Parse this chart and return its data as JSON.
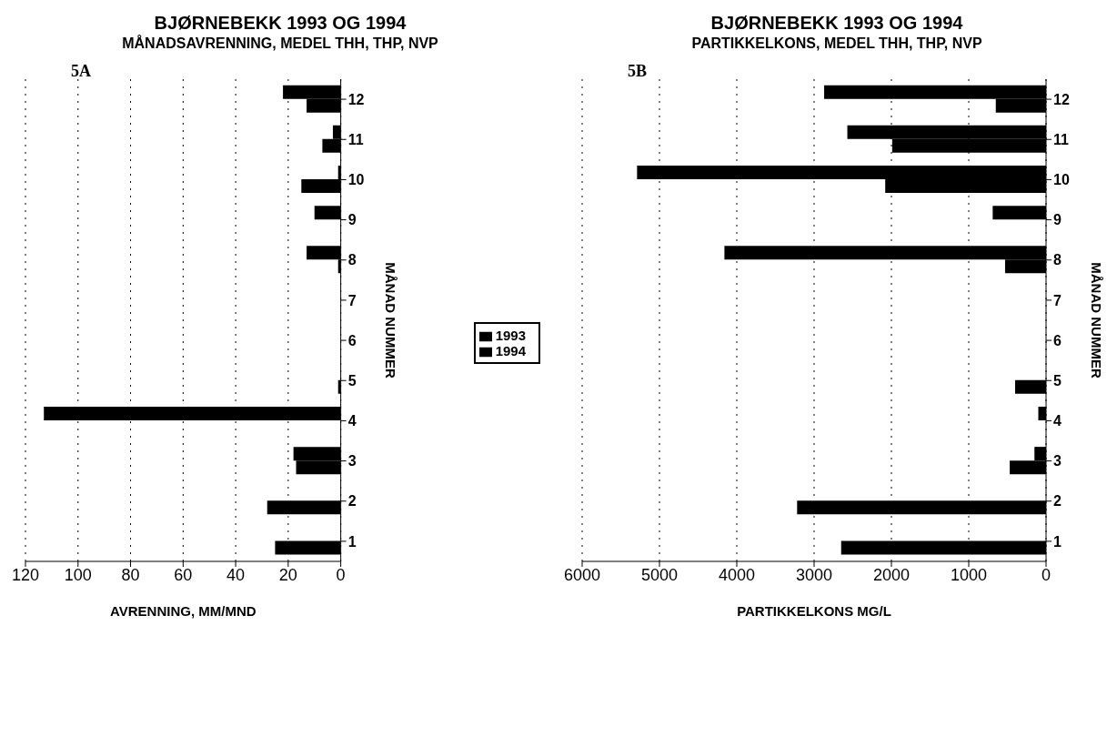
{
  "chart_data": [
    {
      "type": "bar",
      "orientation": "horizontal",
      "title": "BJØRNEBEKK 1993 OG 1994",
      "subtitle": "MÅNADSAVRENNING, MEDEL THH, THP, NVP",
      "xlabel": "AVRENNING, MM/MND",
      "ylabel": "MÅNAD NUMMER",
      "annotations": [
        "5A"
      ],
      "categories": [
        "12",
        "11",
        "10",
        "9",
        "8",
        "7",
        "6",
        "5",
        "4",
        "3",
        "2",
        "1"
      ],
      "series": [
        {
          "name": "1994",
          "color": "#000000",
          "values": [
            22,
            3,
            1,
            10,
            13,
            null,
            null,
            null,
            113,
            18,
            null,
            null
          ]
        },
        {
          "name": "1993",
          "color": "#000000",
          "values": [
            13,
            7,
            15,
            null,
            1,
            null,
            null,
            1,
            null,
            17,
            28,
            25
          ]
        }
      ],
      "xlim": [
        120,
        0
      ],
      "xticks": [
        120,
        100,
        80,
        60,
        40,
        20,
        0
      ],
      "grid": "x",
      "legend": "right"
    },
    {
      "type": "bar",
      "orientation": "horizontal",
      "title": "BJØRNEBEKK 1993 OG 1994",
      "subtitle": "PARTIKKELKONS,  MEDEL THH, THP, NVP",
      "xlabel": "PARTIKKELKONS MG/L",
      "ylabel": "MÅNAD NUMMER",
      "annotations": [
        "5B"
      ],
      "categories": [
        "12",
        "11",
        "10",
        "9",
        "8",
        "7",
        "6",
        "5",
        "4",
        "3",
        "2",
        "1"
      ],
      "series": [
        {
          "color": "#000000",
          "values": [
            2870,
            2570,
            5290,
            690,
            4160,
            null,
            null,
            null,
            100,
            150,
            null,
            null
          ]
        },
        {
          "color": "#000000",
          "values": [
            650,
            1990,
            2080,
            null,
            530,
            null,
            null,
            400,
            null,
            470,
            3220,
            2650
          ]
        }
      ],
      "xlim": [
        6000,
        0
      ],
      "xticks": [
        6000,
        5000,
        4000,
        3000,
        2000,
        1000,
        0
      ],
      "grid": "x",
      "legend": false
    }
  ]
}
